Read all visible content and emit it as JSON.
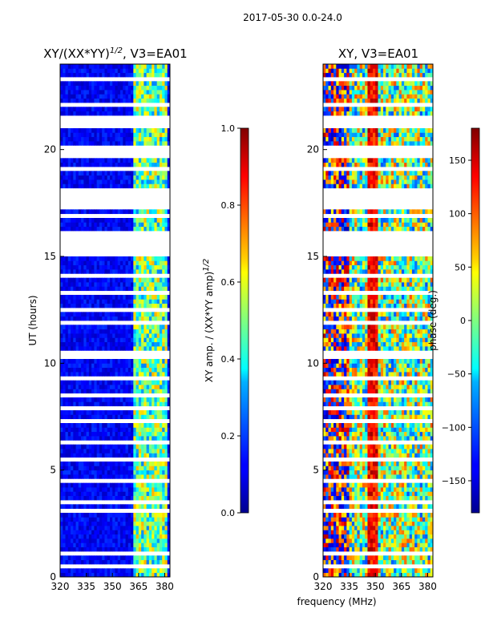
{
  "figure_title": "2017-05-30 0.0-24.0",
  "chart_data": [
    {
      "type": "heatmap",
      "panel": "left",
      "title_main": "XY/(XX*YY)",
      "title_sup": "1/2",
      "title_tail": ", V3=EA01",
      "xlim": [
        320,
        383
      ],
      "ylim": [
        0,
        24
      ],
      "xticks": [
        320,
        335,
        350,
        365,
        380
      ],
      "yticks": [
        0,
        5,
        10,
        15,
        20
      ],
      "ylabel": "UT (hours)",
      "colorbar": {
        "range": [
          0.0,
          1.0
        ],
        "ticks": [
          "0.0",
          "0.2",
          "0.4",
          "0.6",
          "0.8",
          "1.0"
        ],
        "tick_values": [
          0.0,
          0.2,
          0.4,
          0.6,
          0.8,
          1.0
        ],
        "label_main": "XY amp. / (XX*YY amp)",
        "label_sup": "1/2"
      }
    },
    {
      "type": "heatmap",
      "panel": "right",
      "title": "XY, V3=EA01",
      "xlim": [
        320,
        383
      ],
      "ylim": [
        0,
        24
      ],
      "xticks": [
        320,
        335,
        350,
        365,
        380
      ],
      "yticks": [
        0,
        5,
        10,
        15,
        20
      ],
      "xlabel": "frequency (MHz)",
      "colorbar": {
        "range": [
          -180,
          180
        ],
        "ticks": [
          "150",
          "100",
          "50",
          "0",
          "−50",
          "−100",
          "−150"
        ],
        "tick_values": [
          150,
          100,
          50,
          0,
          -50,
          -100,
          -150
        ],
        "label": "phase (deg.)"
      }
    }
  ],
  "flagged_hours": [
    [
      17.2,
      18.2
    ],
    [
      15.2,
      16.1
    ],
    [
      19.6,
      20.3
    ],
    [
      21.0,
      21.6
    ],
    [
      16.8,
      17.0
    ]
  ],
  "band_features_mhz": {
    "rfi_edges": [
      362,
      382
    ],
    "stripes": [
      346,
      352
    ]
  }
}
